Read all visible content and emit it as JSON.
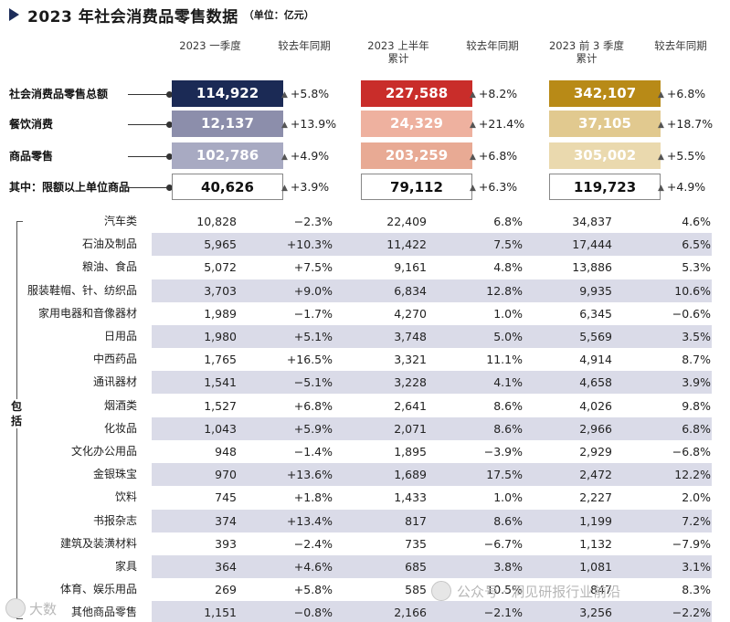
{
  "title": "2023 年社会消费品零售数据",
  "unit": "（单位：亿元）",
  "columns": [
    {
      "label": "2023 一季度",
      "sub": ""
    },
    {
      "label": "较去年同期",
      "sub": ""
    },
    {
      "label": "2023 上半年",
      "sub": "累计"
    },
    {
      "label": "较去年同期",
      "sub": ""
    },
    {
      "label": "2023 前 3 季度",
      "sub": "累计"
    },
    {
      "label": "较去年同期",
      "sub": ""
    }
  ],
  "summary_rows": [
    {
      "label": "社会消费品零售总额",
      "q1": "114,922",
      "q1_chg": "+5.8%",
      "h1": "227,588",
      "h1_chg": "+8.2%",
      "q3": "342,107",
      "q3_chg": "+6.8%"
    },
    {
      "label": "餐饮消费",
      "q1": "12,137",
      "q1_chg": "+13.9%",
      "h1": "24,329",
      "h1_chg": "+21.4%",
      "q3": "37,105",
      "q3_chg": "+18.7%"
    },
    {
      "label": "商品零售",
      "q1": "102,786",
      "q1_chg": "+4.9%",
      "h1": "203,259",
      "h1_chg": "+6.8%",
      "q3": "305,002",
      "q3_chg": "+5.5%"
    },
    {
      "label": "其中：限额以上单位商品",
      "q1": "40,626",
      "q1_chg": "+3.9%",
      "h1": "79,112",
      "h1_chg": "+6.3%",
      "q3": "119,723",
      "q3_chg": "+4.9%"
    }
  ],
  "box_colors": [
    [
      "#1b2a55",
      "#c92d2a",
      "#b88a17"
    ],
    [
      "#8c8eab",
      "#eeb19f",
      "#e1c98f"
    ],
    [
      "#a8aac2",
      "#e8aa94",
      "#ead9ae"
    ]
  ],
  "box_text_colors": [
    [
      "#ffffff",
      "#ffffff",
      "#ffffff"
    ],
    [
      "#ffffff",
      "#ffffff",
      "#ffffff"
    ],
    [
      "#ffffff",
      "#ffffff",
      "#ffffff"
    ]
  ],
  "stripe_color": "#dadbe8",
  "group_label": "包括",
  "detail_rows": [
    {
      "label": "汽车类",
      "q1": "10,828",
      "q1_chg": "−2.3%",
      "h1": "22,409",
      "h1_chg": "6.8%",
      "q3": "34,837",
      "q3_chg": "4.6%"
    },
    {
      "label": "石油及制品",
      "q1": "5,965",
      "q1_chg": "+10.3%",
      "h1": "11,422",
      "h1_chg": "7.5%",
      "q3": "17,444",
      "q3_chg": "6.5%"
    },
    {
      "label": "粮油、食品",
      "q1": "5,072",
      "q1_chg": "+7.5%",
      "h1": "9,161",
      "h1_chg": "4.8%",
      "q3": "13,886",
      "q3_chg": "5.3%"
    },
    {
      "label": "服装鞋帽、针、纺织品",
      "q1": "3,703",
      "q1_chg": "+9.0%",
      "h1": "6,834",
      "h1_chg": "12.8%",
      "q3": "9,935",
      "q3_chg": "10.6%"
    },
    {
      "label": "家用电器和音像器材",
      "q1": "1,989",
      "q1_chg": "−1.7%",
      "h1": "4,270",
      "h1_chg": "1.0%",
      "q3": "6,345",
      "q3_chg": "−0.6%"
    },
    {
      "label": "日用品",
      "q1": "1,980",
      "q1_chg": "+5.1%",
      "h1": "3,748",
      "h1_chg": "5.0%",
      "q3": "5,569",
      "q3_chg": "3.5%"
    },
    {
      "label": "中西药品",
      "q1": "1,765",
      "q1_chg": "+16.5%",
      "h1": "3,321",
      "h1_chg": "11.1%",
      "q3": "4,914",
      "q3_chg": "8.7%"
    },
    {
      "label": "通讯器材",
      "q1": "1,541",
      "q1_chg": "−5.1%",
      "h1": "3,228",
      "h1_chg": "4.1%",
      "q3": "4,658",
      "q3_chg": "3.9%"
    },
    {
      "label": "烟酒类",
      "q1": "1,527",
      "q1_chg": "+6.8%",
      "h1": "2,641",
      "h1_chg": "8.6%",
      "q3": "4,026",
      "q3_chg": "9.8%"
    },
    {
      "label": "化妆品",
      "q1": "1,043",
      "q1_chg": "+5.9%",
      "h1": "2,071",
      "h1_chg": "8.6%",
      "q3": "2,966",
      "q3_chg": "6.8%"
    },
    {
      "label": "文化办公用品",
      "q1": "948",
      "q1_chg": "−1.4%",
      "h1": "1,895",
      "h1_chg": "−3.9%",
      "q3": "2,929",
      "q3_chg": "−6.8%"
    },
    {
      "label": "金银珠宝",
      "q1": "970",
      "q1_chg": "+13.6%",
      "h1": "1,689",
      "h1_chg": "17.5%",
      "q3": "2,472",
      "q3_chg": "12.2%"
    },
    {
      "label": "饮料",
      "q1": "745",
      "q1_chg": "+1.8%",
      "h1": "1,433",
      "h1_chg": "1.0%",
      "q3": "2,227",
      "q3_chg": "2.0%"
    },
    {
      "label": "书报杂志",
      "q1": "374",
      "q1_chg": "+13.4%",
      "h1": "817",
      "h1_chg": "8.6%",
      "q3": "1,199",
      "q3_chg": "7.2%"
    },
    {
      "label": "建筑及装潢材料",
      "q1": "393",
      "q1_chg": "−2.4%",
      "h1": "735",
      "h1_chg": "−6.7%",
      "q3": "1,132",
      "q3_chg": "−7.9%"
    },
    {
      "label": "家具",
      "q1": "364",
      "q1_chg": "+4.6%",
      "h1": "685",
      "h1_chg": "3.8%",
      "q3": "1,081",
      "q3_chg": "3.1%"
    },
    {
      "label": "体育、娱乐用品",
      "q1": "269",
      "q1_chg": "+5.8%",
      "h1": "585",
      "h1_chg": "10.5%",
      "q3": "847",
      "q3_chg": "8.3%"
    },
    {
      "label": "其他商品零售",
      "q1": "1,151",
      "q1_chg": "−0.8%",
      "h1": "2,166",
      "h1_chg": "−2.1%",
      "q3": "3,256",
      "q3_chg": "−2.2%"
    }
  ],
  "watermark": {
    "left": "大数",
    "right": "公众号 · 洞见研报行业前沿"
  },
  "chart_data": {
    "type": "table",
    "title": "2023 年社会消费品零售数据",
    "unit": "亿元",
    "column_headers": [
      "2023 一季度",
      "较去年同期",
      "2023 上半年累计",
      "较去年同期",
      "2023 前 3 季度累计",
      "较去年同期"
    ],
    "rows": [
      {
        "name": "社会消费品零售总额",
        "values": [
          114922,
          5.8,
          227588,
          8.2,
          342107,
          6.8
        ]
      },
      {
        "name": "餐饮消费",
        "values": [
          12137,
          13.9,
          24329,
          21.4,
          37105,
          18.7
        ]
      },
      {
        "name": "商品零售",
        "values": [
          102786,
          4.9,
          203259,
          6.8,
          305002,
          5.5
        ]
      },
      {
        "name": "其中：限额以上单位商品",
        "values": [
          40626,
          3.9,
          79112,
          6.3,
          119723,
          4.9
        ]
      },
      {
        "name": "汽车类",
        "values": [
          10828,
          -2.3,
          22409,
          6.8,
          34837,
          4.6
        ]
      },
      {
        "name": "石油及制品",
        "values": [
          5965,
          10.3,
          11422,
          7.5,
          17444,
          6.5
        ]
      },
      {
        "name": "粮油、食品",
        "values": [
          5072,
          7.5,
          9161,
          4.8,
          13886,
          5.3
        ]
      },
      {
        "name": "服装鞋帽、针、纺织品",
        "values": [
          3703,
          9.0,
          6834,
          12.8,
          9935,
          10.6
        ]
      },
      {
        "name": "家用电器和音像器材",
        "values": [
          1989,
          -1.7,
          4270,
          1.0,
          6345,
          -0.6
        ]
      },
      {
        "name": "日用品",
        "values": [
          1980,
          5.1,
          3748,
          5.0,
          5569,
          3.5
        ]
      },
      {
        "name": "中西药品",
        "values": [
          1765,
          16.5,
          3321,
          11.1,
          4914,
          8.7
        ]
      },
      {
        "name": "通讯器材",
        "values": [
          1541,
          -5.1,
          3228,
          4.1,
          4658,
          3.9
        ]
      },
      {
        "name": "烟酒类",
        "values": [
          1527,
          6.8,
          2641,
          8.6,
          4026,
          9.8
        ]
      },
      {
        "name": "化妆品",
        "values": [
          1043,
          5.9,
          2071,
          8.6,
          2966,
          6.8
        ]
      },
      {
        "name": "文化办公用品",
        "values": [
          948,
          -1.4,
          1895,
          -3.9,
          2929,
          -6.8
        ]
      },
      {
        "name": "金银珠宝",
        "values": [
          970,
          13.6,
          1689,
          17.5,
          2472,
          12.2
        ]
      },
      {
        "name": "饮料",
        "values": [
          745,
          1.8,
          1433,
          1.0,
          2227,
          2.0
        ]
      },
      {
        "name": "书报杂志",
        "values": [
          374,
          13.4,
          817,
          8.6,
          1199,
          7.2
        ]
      },
      {
        "name": "建筑及装潢材料",
        "values": [
          393,
          -2.4,
          735,
          -6.7,
          1132,
          -7.9
        ]
      },
      {
        "name": "家具",
        "values": [
          364,
          4.6,
          685,
          3.8,
          1081,
          3.1
        ]
      },
      {
        "name": "体育、娱乐用品",
        "values": [
          269,
          5.8,
          585,
          10.5,
          847,
          8.3
        ]
      },
      {
        "name": "其他商品零售",
        "values": [
          1151,
          -0.8,
          2166,
          -2.1,
          3256,
          -2.2
        ]
      }
    ]
  }
}
